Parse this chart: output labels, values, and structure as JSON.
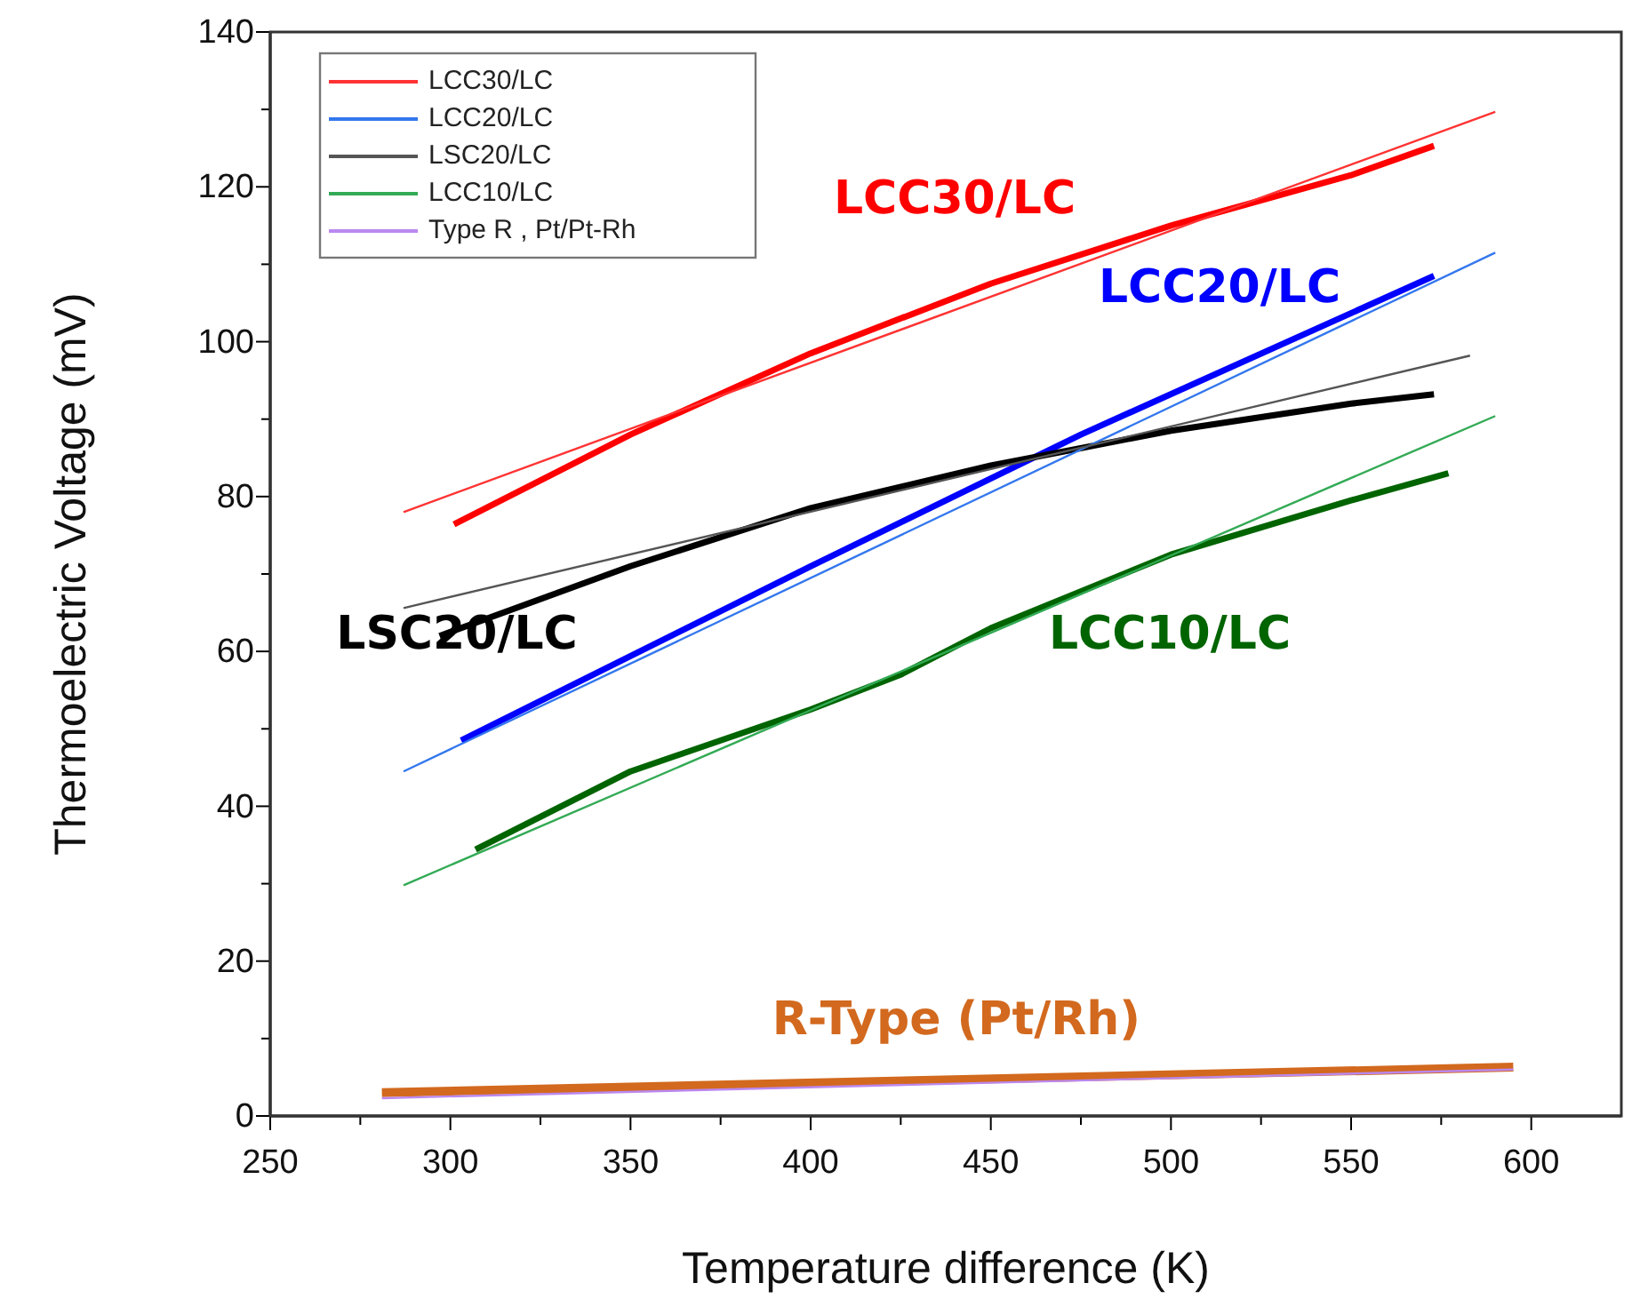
{
  "chart_data": {
    "type": "line",
    "xlabel": "Temperature difference  (K)",
    "ylabel": "Thermoelectric Voltage (mV)",
    "xlim": [
      250,
      625
    ],
    "ylim": [
      0,
      140
    ],
    "xticks": [
      250,
      {
        "value": 275,
        "label": null
      },
      300,
      {
        "value": 325,
        "label": null
      },
      350,
      {
        "value": 375,
        "label": null
      },
      400,
      {
        "value": 425,
        "label": null
      },
      450,
      {
        "value": 475,
        "label": null
      },
      500,
      {
        "value": 525,
        "label": null
      },
      550,
      {
        "value": 575,
        "label": null
      },
      600
    ],
    "yticks": [
      0,
      {
        "value": 10,
        "label": null
      },
      20,
      {
        "value": 30,
        "label": null
      },
      40,
      {
        "value": 50,
        "label": null
      },
      60,
      {
        "value": 70,
        "label": null
      },
      80,
      {
        "value": 90,
        "label": null
      },
      100,
      {
        "value": 110,
        "label": null
      },
      120,
      {
        "value": 130,
        "label": null
      },
      140
    ],
    "grid": false,
    "legend": "top left",
    "marker": "none",
    "line_style": "solid",
    "series": [
      {
        "x": [
          301,
          350,
          400,
          450,
          500,
          550,
          573
        ],
        "values": [
          76.4,
          88,
          98.5,
          107.5,
          115,
          121.5,
          125.3
        ],
        "color": "#ff0000"
      },
      {
        "x": [
          303,
          400,
          475,
          573
        ],
        "values": [
          48.5,
          71,
          88,
          108.5
        ],
        "color": "#0000ff"
      },
      {
        "x": [
          297,
          350,
          400,
          450,
          500,
          550,
          573
        ],
        "values": [
          62,
          71,
          78.5,
          84,
          88.5,
          92,
          93.2
        ],
        "color": "#000000"
      },
      {
        "x": [
          307,
          350,
          400,
          425,
          450,
          500,
          550,
          577
        ],
        "values": [
          34.4,
          44.5,
          52.5,
          57,
          63,
          72.5,
          79.5,
          83
        ],
        "color": "#006400"
      },
      {
        "x": [
          281,
          595
        ],
        "values": [
          3.0,
          6.3
        ],
        "color": "#d2691e"
      },
      {
        "name": "LCC30/LC",
        "x": [
          287,
          590
        ],
        "values": [
          78,
          129.7
        ],
        "color": "#ff3333"
      },
      {
        "name": "LCC20/LC",
        "x": [
          287,
          590
        ],
        "values": [
          44.5,
          111.5
        ],
        "color": "#3377ee"
      },
      {
        "name": "LSC20/LC",
        "x": [
          287,
          583
        ],
        "values": [
          65.6,
          98.2
        ],
        "color": "#555555"
      },
      {
        "name": "LCC10/LC",
        "x": [
          287,
          590
        ],
        "values": [
          29.8,
          90.4
        ],
        "color": "#33aa55"
      },
      {
        "name": "Type R , Pt/Pt-Rh",
        "x": [
          281,
          595
        ],
        "values": [
          2.3,
          6.0
        ],
        "color": "#bb88ee"
      }
    ],
    "annotations": [
      "LCC30/LC",
      "LCC20/LC",
      "LSC20/LC",
      "LCC10/LC",
      "R-Type (Pt/Rh)"
    ]
  }
}
